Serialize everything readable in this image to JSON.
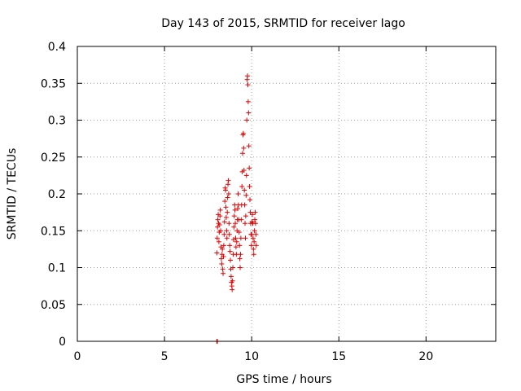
{
  "chart_data": {
    "type": "scatter",
    "title": "Day 143 of 2015, SRMTID for receiver Iago",
    "xlabel": "GPS time / hours",
    "ylabel": "SRMTID / TECUs",
    "xlim": [
      0,
      24
    ],
    "ylim": [
      0,
      0.4
    ],
    "xticks": [
      0,
      5,
      10,
      15,
      20
    ],
    "yticks": [
      0,
      0.05,
      0.1,
      0.15,
      0.2,
      0.25,
      0.3,
      0.35,
      0.4
    ],
    "xtick_labels": [
      "0",
      "5",
      "10",
      "15",
      "20"
    ],
    "ytick_labels": [
      "0",
      "0.05",
      "0.1",
      "0.15",
      "0.2",
      "0.25",
      "0.3",
      "0.35",
      "0.4"
    ],
    "grid": true,
    "marker": "+",
    "marker_color": "#e00000",
    "points": [
      [
        8.0,
        0.0
      ],
      [
        8.01,
        0.0
      ],
      [
        8.02,
        0.0
      ],
      [
        8.03,
        0.0
      ],
      [
        8.0,
        0.12
      ],
      [
        8.02,
        0.14
      ],
      [
        8.04,
        0.155
      ],
      [
        8.06,
        0.165
      ],
      [
        8.08,
        0.172
      ],
      [
        8.1,
        0.16
      ],
      [
        8.12,
        0.135
      ],
      [
        8.14,
        0.148
      ],
      [
        8.16,
        0.158
      ],
      [
        8.18,
        0.17
      ],
      [
        8.2,
        0.178
      ],
      [
        8.22,
        0.15
      ],
      [
        8.24,
        0.128
      ],
      [
        8.26,
        0.112
      ],
      [
        8.28,
        0.105
      ],
      [
        8.3,
        0.118
      ],
      [
        8.32,
        0.125
      ],
      [
        8.34,
        0.098
      ],
      [
        8.36,
        0.092
      ],
      [
        8.38,
        0.115
      ],
      [
        8.4,
        0.13
      ],
      [
        8.42,
        0.145
      ],
      [
        8.44,
        0.162
      ],
      [
        8.46,
        0.19
      ],
      [
        8.48,
        0.208
      ],
      [
        8.5,
        0.205
      ],
      [
        8.52,
        0.182
      ],
      [
        8.54,
        0.168
      ],
      [
        8.56,
        0.15
      ],
      [
        8.58,
        0.14
      ],
      [
        8.6,
        0.175
      ],
      [
        8.62,
        0.195
      ],
      [
        8.64,
        0.213
      ],
      [
        8.66,
        0.218
      ],
      [
        8.68,
        0.2
      ],
      [
        8.7,
        0.16
      ],
      [
        8.72,
        0.145
      ],
      [
        8.74,
        0.13
      ],
      [
        8.76,
        0.122
      ],
      [
        8.78,
        0.11
      ],
      [
        8.8,
        0.098
      ],
      [
        8.82,
        0.088
      ],
      [
        8.84,
        0.08
      ],
      [
        8.86,
        0.075
      ],
      [
        8.88,
        0.07
      ],
      [
        8.9,
        0.082
      ],
      [
        8.92,
        0.1
      ],
      [
        8.94,
        0.118
      ],
      [
        8.96,
        0.138
      ],
      [
        8.98,
        0.155
      ],
      [
        9.0,
        0.17
      ],
      [
        9.02,
        0.185
      ],
      [
        9.04,
        0.178
      ],
      [
        9.06,
        0.16
      ],
      [
        9.08,
        0.14
      ],
      [
        9.1,
        0.128
      ],
      [
        9.12,
        0.118
      ],
      [
        9.14,
        0.135
      ],
      [
        9.16,
        0.15
      ],
      [
        9.18,
        0.165
      ],
      [
        9.2,
        0.18
      ],
      [
        9.22,
        0.2
      ],
      [
        9.24,
        0.185
      ],
      [
        9.26,
        0.165
      ],
      [
        9.28,
        0.148
      ],
      [
        9.3,
        0.13
      ],
      [
        9.32,
        0.112
      ],
      [
        9.34,
        0.1
      ],
      [
        9.36,
        0.118
      ],
      [
        9.38,
        0.14
      ],
      [
        9.4,
        0.165
      ],
      [
        9.42,
        0.185
      ],
      [
        9.44,
        0.21
      ],
      [
        9.46,
        0.23
      ],
      [
        9.48,
        0.255
      ],
      [
        9.5,
        0.28
      ],
      [
        9.52,
        0.282
      ],
      [
        9.54,
        0.262
      ],
      [
        9.56,
        0.232
      ],
      [
        9.58,
        0.205
      ],
      [
        9.6,
        0.185
      ],
      [
        9.62,
        0.16
      ],
      [
        9.64,
        0.14
      ],
      [
        9.66,
        0.17
      ],
      [
        9.68,
        0.198
      ],
      [
        9.7,
        0.225
      ],
      [
        9.72,
        0.3
      ],
      [
        9.74,
        0.355
      ],
      [
        9.76,
        0.36
      ],
      [
        9.78,
        0.348
      ],
      [
        9.8,
        0.325
      ],
      [
        9.82,
        0.31
      ],
      [
        9.84,
        0.265
      ],
      [
        9.86,
        0.235
      ],
      [
        9.88,
        0.21
      ],
      [
        9.9,
        0.192
      ],
      [
        9.92,
        0.175
      ],
      [
        9.94,
        0.16
      ],
      [
        9.96,
        0.145
      ],
      [
        9.98,
        0.13
      ],
      [
        10.0,
        0.145
      ],
      [
        10.02,
        0.162
      ],
      [
        10.04,
        0.172
      ],
      [
        10.06,
        0.16
      ],
      [
        10.08,
        0.14
      ],
      [
        10.1,
        0.125
      ],
      [
        10.12,
        0.118
      ],
      [
        10.14,
        0.135
      ],
      [
        10.16,
        0.15
      ],
      [
        10.18,
        0.165
      ],
      [
        10.2,
        0.175
      ],
      [
        10.22,
        0.16
      ],
      [
        10.24,
        0.145
      ],
      [
        10.26,
        0.13
      ]
    ]
  }
}
